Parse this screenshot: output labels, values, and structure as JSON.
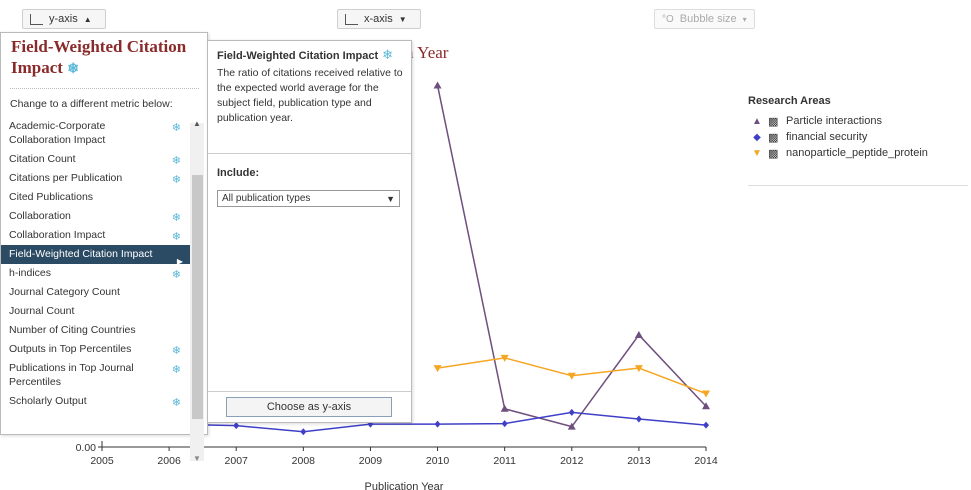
{
  "toolbar": {
    "y_axis_label": "y-axis",
    "x_axis_label": "x-axis",
    "bubble_label": "Bubble size",
    "caret_up": "▲",
    "caret_down": "▼"
  },
  "chart_title": "n Year",
  "legend": {
    "title": "Research Areas",
    "items": [
      {
        "marker": "▲",
        "color": "#6e4f7d",
        "label": "Particle interactions"
      },
      {
        "marker": "◆",
        "color": "#3f3fc8",
        "label": "financial security"
      },
      {
        "marker": "▼",
        "color": "#f5a623",
        "label": "nanoparticle_peptide_protein"
      }
    ]
  },
  "metric_panel": {
    "title": "Field-Weighted Citation Impact",
    "hint": "Change to a different metric below:",
    "items": [
      {
        "label": "Academic-Corporate Collaboration Impact",
        "snow": true
      },
      {
        "label": "Citation Count",
        "snow": true
      },
      {
        "label": "Citations per Publication",
        "snow": true
      },
      {
        "label": "Cited Publications",
        "snow": false
      },
      {
        "label": "Collaboration",
        "snow": true
      },
      {
        "label": "Collaboration Impact",
        "snow": true
      },
      {
        "label": "Field-Weighted Citation Impact",
        "snow": false,
        "selected": true
      },
      {
        "label": "h-indices",
        "snow": true
      },
      {
        "label": "Journal Category Count",
        "snow": false
      },
      {
        "label": "Journal Count",
        "snow": false
      },
      {
        "label": "Number of Citing Countries",
        "snow": false
      },
      {
        "label": "Outputs in Top Percentiles",
        "snow": true
      },
      {
        "label": "Publications in Top Journal Percentiles",
        "snow": true
      },
      {
        "label": "Scholarly Output",
        "snow": true
      }
    ]
  },
  "desc_panel": {
    "title": "Field-Weighted Citation Impact",
    "description": "The ratio of citations received relative to the expected world average for the subject field, publication type and publication year.",
    "include_label": "Include:",
    "include_value": "All publication types",
    "choose_button": "Choose as y-axis"
  },
  "chart_data": {
    "type": "line",
    "title": "",
    "xlabel": "Publication Year",
    "x": [
      2005,
      2006,
      2007,
      2008,
      2009,
      2010,
      2011,
      2012,
      2013,
      2014
    ],
    "x_ticks": [
      "2005",
      "2006",
      "2007",
      "2008",
      "2009",
      "2010",
      "2011",
      "2012",
      "2013",
      "2014"
    ],
    "y_ticks_visible": [
      "0.00"
    ],
    "ylim": [
      0,
      7.6
    ],
    "series": [
      {
        "name": "Particle interactions",
        "color": "#6e4f7d",
        "marker": "triangle-up",
        "x": [
          2010,
          2011,
          2012,
          2013,
          2014
        ],
        "y": [
          7.1,
          0.75,
          0.4,
          2.2,
          0.8
        ]
      },
      {
        "name": "financial security",
        "color": "#3f3fc8",
        "marker": "diamond",
        "x": [
          2006,
          2007,
          2008,
          2009,
          2010,
          2011,
          2012,
          2013,
          2014
        ],
        "y": [
          0.45,
          0.42,
          0.3,
          0.45,
          0.45,
          0.46,
          0.68,
          0.55,
          0.43
        ]
      },
      {
        "name": "nanoparticle_peptide_protein",
        "color": "#f5a623",
        "marker": "triangle-down",
        "x": [
          2010,
          2011,
          2012,
          2013,
          2014
        ],
        "y": [
          1.55,
          1.75,
          1.4,
          1.55,
          1.05
        ]
      }
    ]
  }
}
